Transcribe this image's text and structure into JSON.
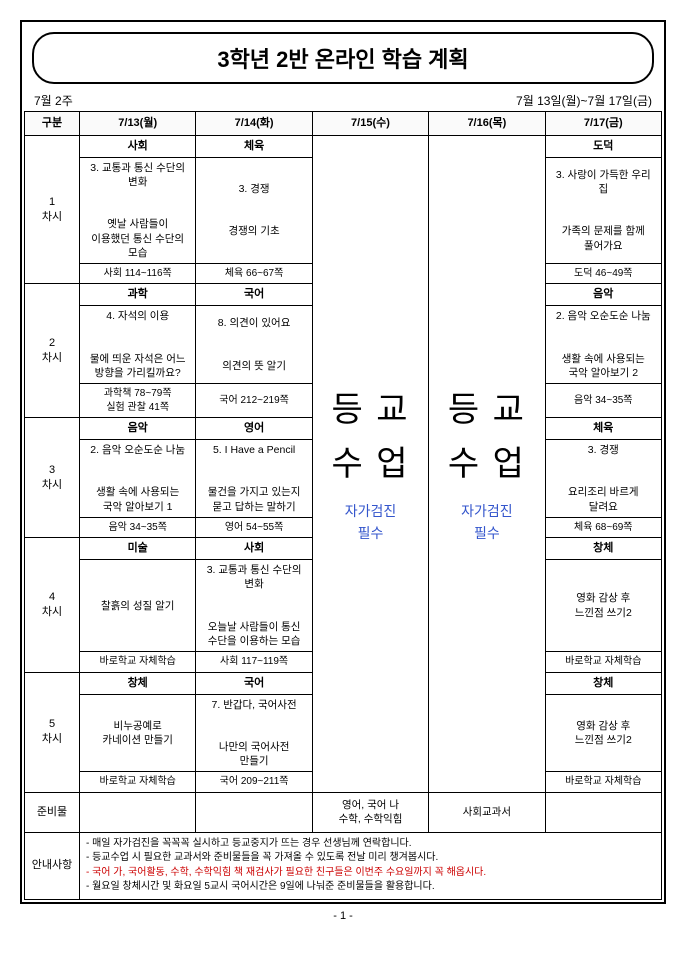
{
  "title": "3학년 2반 온라인 학습 계획",
  "week_label": "7월 2주",
  "date_range": "7월 13일(월)~7월 17일(금)",
  "header": {
    "gubun": "구분",
    "days": [
      "7/13(월)",
      "7/14(화)",
      "7/15(수)",
      "7/16(목)",
      "7/17(금)"
    ]
  },
  "vertical_banner": "등 교 수 업",
  "self_check": "자가검진\n필수",
  "periods": [
    {
      "label": "1\n차시",
      "mon": {
        "subject": "사회",
        "content": "3. 교통과 통신 수단의\n변화\n\n옛날 사람들이\n이용했던 통신 수단의\n모습",
        "pages": "사회 114~116쪽"
      },
      "tue": {
        "subject": "체육",
        "content": "3. 경쟁\n\n경쟁의 기초",
        "pages": "체육 66~67쪽"
      },
      "fri": {
        "subject": "도덕",
        "content": "3. 사랑이 가득한 우리\n집\n\n가족의 문제를 함께\n풀어가요",
        "pages": "도덕 46~49쪽"
      }
    },
    {
      "label": "2\n차시",
      "mon": {
        "subject": "과학",
        "content": "4. 자석의 이용\n\n물에 띄운 자석은 어느\n방향을 가리킬까요?",
        "pages": "과학책 78~79쪽\n실험 관찰 41쪽"
      },
      "tue": {
        "subject": "국어",
        "content": "8. 의견이 있어요\n\n의견의 뜻 알기",
        "pages": "국어 212~219쪽"
      },
      "fri": {
        "subject": "음악",
        "content": "2. 음악 오순도순 나눔\n\n생활 속에 사용되는\n국악 알아보기 2",
        "pages": "음악 34~35쪽"
      }
    },
    {
      "label": "3\n차시",
      "mon": {
        "subject": "음악",
        "content": "2. 음악 오순도순 나눔\n\n생활 속에 사용되는\n국악 알아보기 1",
        "pages": "음악 34~35쪽"
      },
      "tue": {
        "subject": "영어",
        "content": "5. I Have a Pencil\n\n물건을 가지고 있는지\n묻고 답하는 말하기",
        "pages": "영어 54~55쪽"
      },
      "fri": {
        "subject": "체육",
        "content": "3. 경쟁\n\n요리조리 바르게\n달려요",
        "pages": "체육 68~69쪽"
      }
    },
    {
      "label": "4\n차시",
      "mon": {
        "subject": "미술",
        "content": "찰흙의 성질 알기",
        "pages": "바로학교 자체학습"
      },
      "tue": {
        "subject": "사회",
        "content": "3. 교통과 통신 수단의\n변화\n\n오늘날 사람들이 통신\n수단을 이용하는 모습",
        "pages": "사회 117~119쪽"
      },
      "fri": {
        "subject": "창체",
        "content": "영화 감상 후\n느낀점 쓰기2",
        "pages": "바로학교 자체학습"
      }
    },
    {
      "label": "5\n차시",
      "mon": {
        "subject": "창체",
        "content": "비누공예로\n카네이션 만들기",
        "pages": "바로학교 자체학습"
      },
      "tue": {
        "subject": "국어",
        "content": "7. 반갑다, 국어사전\n\n나만의 국어사전\n만들기",
        "pages": "국어 209~211쪽"
      },
      "fri": {
        "subject": "창체",
        "content": "영화 감상 후\n느낀점 쓰기2",
        "pages": "바로학교 자체학습"
      }
    }
  ],
  "prep_label": "준비물",
  "prep_wed": "영어, 국어 나\n수학, 수학익힘",
  "prep_thu": "사회교과서",
  "notice_label": "안내사항",
  "notices": [
    "매일 자가검진을 꼭꼭꼭 실시하고 등교중지가 뜨는 경우 선생님께 연락합니다.",
    "등교수업 시 필요한 교과서와 준비물들을 꼭 가져올 수 있도록 전날 미리 챙겨봅시다.",
    "국어 가, 국어활동, 수학, 수학익힘 책 재검사가 필요한 친구들은 이번주 수요일까지 꼭 해옵시다.",
    "월요일 창체시간 및 화요일 5교시 국어시간은 9일에 나눠준 준비물들을 활용합니다."
  ],
  "page_num": "- 1 -"
}
